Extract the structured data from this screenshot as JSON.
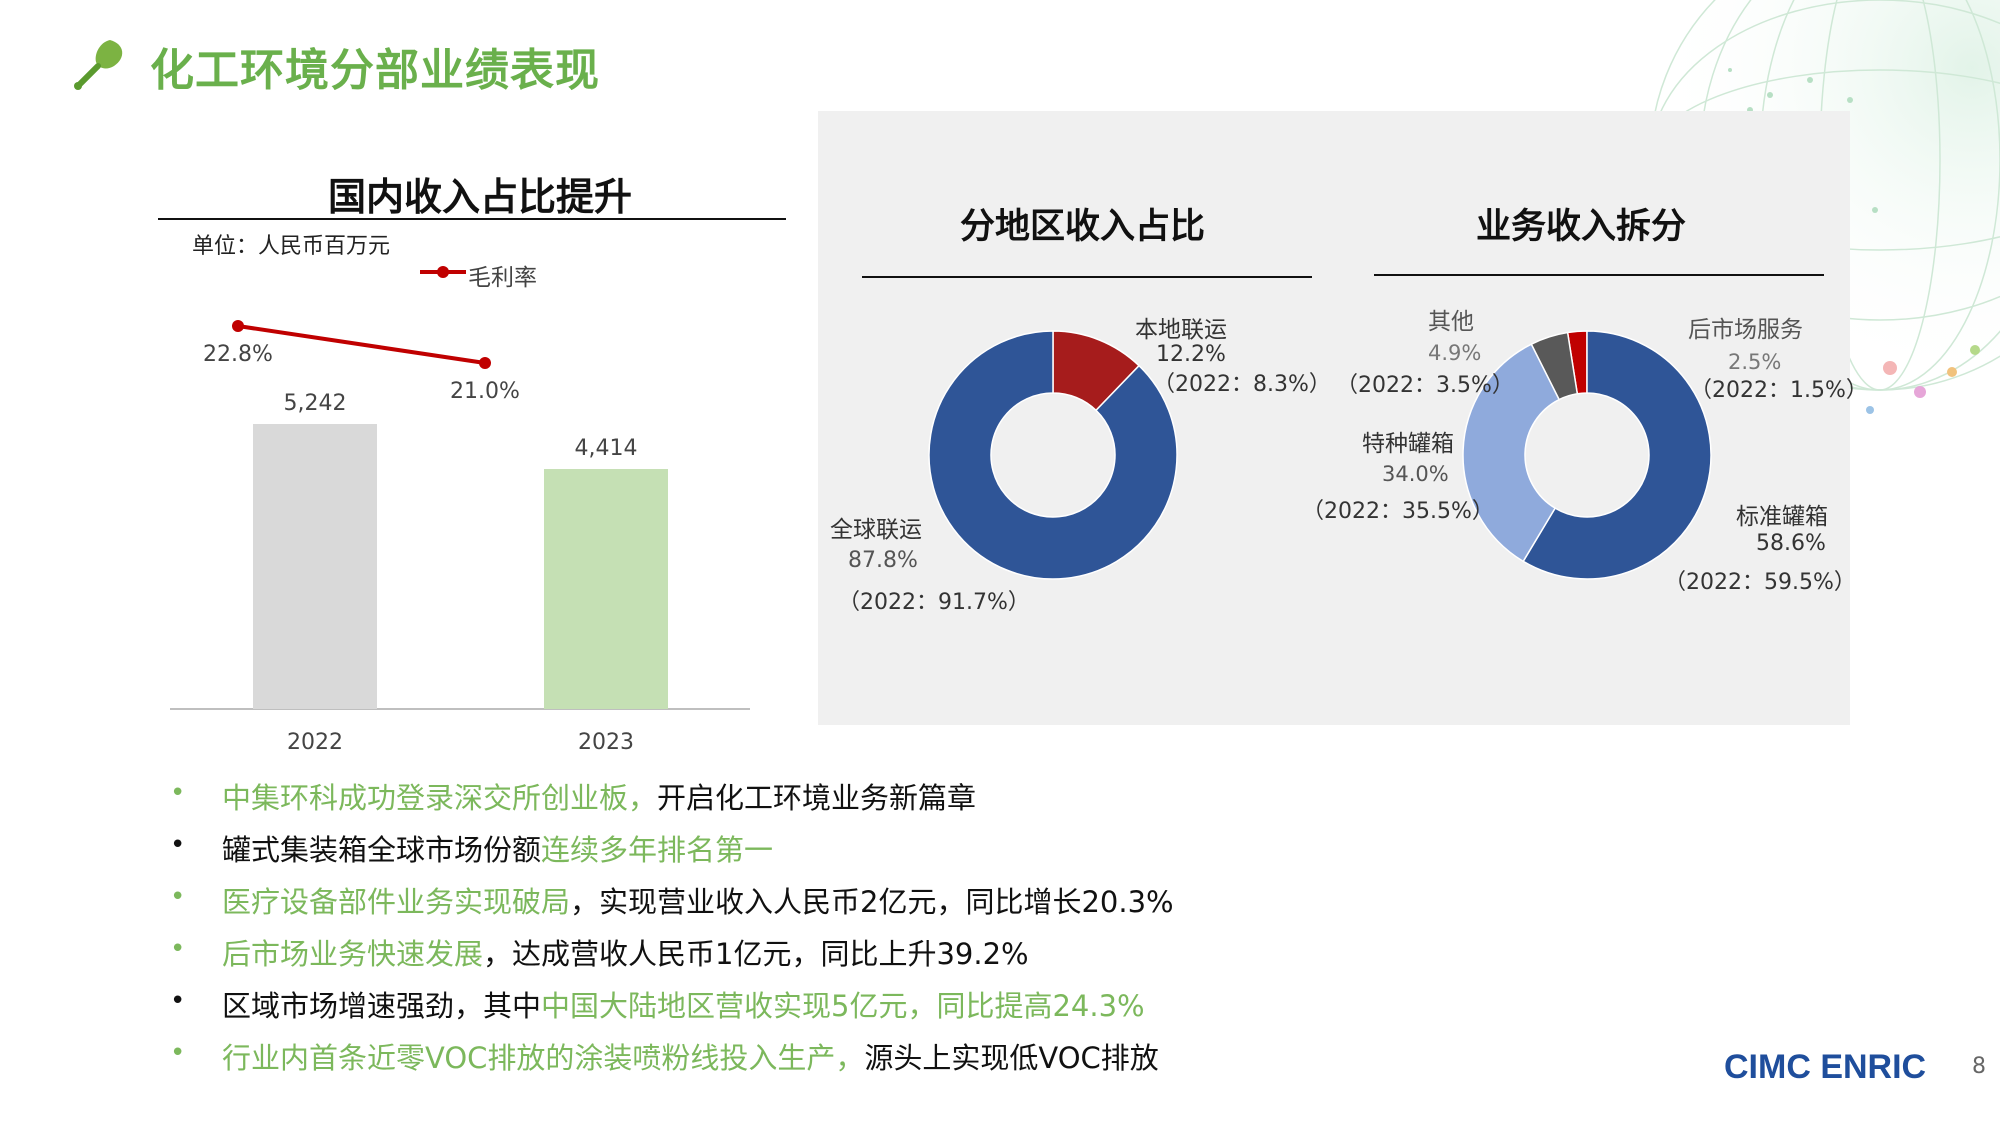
{
  "page": {
    "title": "化工环境分部业绩表现",
    "page_number": "8",
    "logo_text": "CIMC ENRIC",
    "icon": "leaf-brush-icon"
  },
  "left_chart": {
    "heading": "国内收入占比提升",
    "unit": "单位：人民币百万元",
    "legend": "毛利率",
    "colors": {
      "bar_2022": "#d9d9d9",
      "bar_2023": "#c5e0b4",
      "line": "#c00000"
    }
  },
  "chart_data": [
    {
      "type": "bar",
      "categories": [
        "2022",
        "2023"
      ],
      "values": [
        5242,
        4414
      ],
      "value_labels": [
        "5,242",
        "4,414"
      ],
      "line_series": {
        "name": "毛利率",
        "values": [
          22.8,
          21.0
        ],
        "labels": [
          "22.8%",
          "21.0%"
        ]
      },
      "title": "国内收入占比提升",
      "xlabel": "",
      "ylabel": ""
    },
    {
      "type": "pie",
      "title": "分地区收入占比",
      "categories": [
        "本地联运",
        "全球联运"
      ],
      "values": [
        12.2,
        87.8
      ],
      "colors": [
        "#a61c1c",
        "#2f5597"
      ]
    },
    {
      "type": "pie",
      "title": "业务收入拆分",
      "categories": [
        "后市场服务",
        "标准罐箱",
        "特种罐箱",
        "其他"
      ],
      "values": [
        2.5,
        58.6,
        34.0,
        4.9
      ],
      "colors": [
        "#c00000",
        "#2f5597",
        "#8faadc",
        "#595959"
      ]
    }
  ],
  "right_panel": {
    "region": {
      "heading": "分地区收入占比",
      "local": {
        "name": "本地联运",
        "pct": "12.2%",
        "prev": "（2022：8.3%）"
      },
      "global": {
        "name": "全球联运",
        "pct": "87.8%",
        "prev": "（2022：91.7%）"
      }
    },
    "business": {
      "heading": "业务收入拆分",
      "other": {
        "name": "其他",
        "pct": "4.9%",
        "prev": "（2022：3.5%）"
      },
      "after": {
        "name": "后市场服务",
        "pct": "2.5%",
        "prev": "（2022：1.5%）"
      },
      "special": {
        "name": "特种罐箱",
        "pct": "34.0%",
        "prev": "（2022：35.5%）"
      },
      "standard": {
        "name": "标准罐箱",
        "pct": "58.6%",
        "prev": "（2022：59.5%）"
      }
    }
  },
  "bullets": [
    {
      "dot_color": "green",
      "parts": [
        {
          "text": "中集环科成功登录深交所创业板，",
          "color": "green"
        },
        {
          "text": "开启化工环境业务新篇章",
          "color": "black"
        }
      ]
    },
    {
      "dot_color": "black",
      "parts": [
        {
          "text": "罐式集装箱全球市场份额",
          "color": "black"
        },
        {
          "text": "连续多年排名第一",
          "color": "green"
        }
      ]
    },
    {
      "dot_color": "green",
      "parts": [
        {
          "text": "医疗设备部件业务实现破局",
          "color": "green"
        },
        {
          "text": "，实现营业收入人民币2亿元，同比增长20.3%",
          "color": "black"
        }
      ]
    },
    {
      "dot_color": "green",
      "parts": [
        {
          "text": "后市场业务快速发展",
          "color": "green"
        },
        {
          "text": "，达成营收人民币1亿元，同比上升39.2%",
          "color": "black"
        }
      ]
    },
    {
      "dot_color": "black",
      "parts": [
        {
          "text": "区域市场增速强劲，其中",
          "color": "black"
        },
        {
          "text": "中国大陆地区营收实现5亿元，同比提高24.3%",
          "color": "green"
        }
      ]
    },
    {
      "dot_color": "green",
      "parts": [
        {
          "text": "行业内首条近零VOC排放的涂装喷粉线投入生产，",
          "color": "green"
        },
        {
          "text": "源头上实现低VOC排放",
          "color": "black"
        }
      ]
    }
  ]
}
